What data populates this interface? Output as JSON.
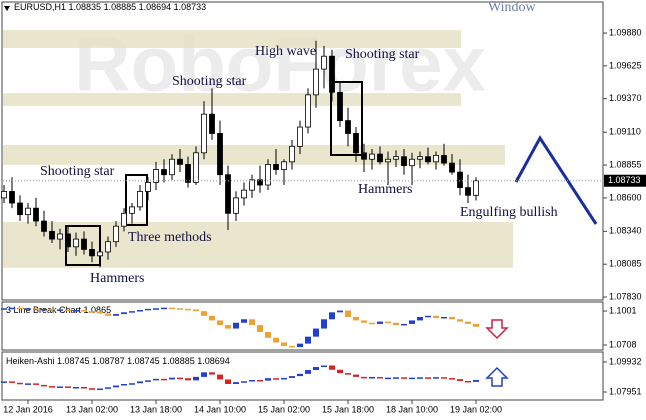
{
  "watermark": "RoboForex",
  "window_label": "Window",
  "chart_data": [
    {
      "type": "candlestick",
      "title": "EURUSD,H1",
      "header_values": [
        1.08835,
        1.08885,
        1.08694,
        1.08733
      ],
      "categories": [
        null,
        null,
        null,
        "12 Jan 2016",
        null,
        null,
        null,
        null,
        null,
        null,
        null,
        "13 Jan 02:00",
        null,
        null,
        null,
        null,
        null,
        null,
        null,
        "13 Jan 18:00",
        null,
        null,
        null,
        null,
        null,
        null,
        null,
        "14 Jan 10:00",
        null,
        null,
        null,
        null,
        null,
        null,
        null,
        "15 Jan 02:00",
        null,
        null,
        null,
        null,
        null,
        null,
        null,
        "15 Jan 18:00",
        null,
        null,
        null,
        null,
        null,
        null,
        null,
        "18 Jan 10:00",
        null,
        null,
        null,
        null,
        null,
        null,
        null,
        "19 Jan 02:00"
      ],
      "open": [
        1.086,
        1.0865,
        1.0856,
        1.0847,
        1.0852,
        1.0842,
        1.0834,
        1.0828,
        1.0832,
        1.0822,
        1.0828,
        1.082,
        1.0815,
        1.0818,
        1.0826,
        1.0838,
        1.0848,
        1.0853,
        1.0865,
        1.0872,
        1.0882,
        1.0878,
        1.089,
        1.0886,
        1.0872,
        1.0895,
        1.0925,
        1.091,
        1.0878,
        1.0848,
        1.086,
        1.0866,
        1.0874,
        1.087,
        1.0886,
        1.0882,
        1.0888,
        1.09,
        1.0915,
        1.094,
        1.096,
        1.097,
        1.0942,
        1.092,
        1.091,
        1.0895,
        1.089,
        1.0894,
        1.0888,
        1.089,
        1.0892,
        1.0885,
        1.089,
        1.0892,
        1.0888,
        1.0893,
        1.0887,
        1.088,
        1.0868,
        1.0862
      ],
      "high": [
        1.087,
        1.0876,
        1.0862,
        1.0856,
        1.086,
        1.085,
        1.0842,
        1.0836,
        1.0838,
        1.0833,
        1.0834,
        1.0826,
        1.0824,
        1.083,
        1.0842,
        1.0852,
        1.0856,
        1.087,
        1.0876,
        1.0888,
        1.089,
        1.0894,
        1.0898,
        1.0892,
        1.09,
        1.0935,
        1.0945,
        1.092,
        1.0885,
        1.0865,
        1.0872,
        1.0878,
        1.0885,
        1.089,
        1.0898,
        1.089,
        1.0905,
        1.092,
        1.0945,
        1.0982,
        1.0978,
        1.0975,
        1.095,
        1.093,
        1.0915,
        1.0902,
        1.0898,
        1.09,
        1.0896,
        1.0897,
        1.0898,
        1.0895,
        1.0896,
        1.0899,
        1.0896,
        1.0902,
        1.0894,
        1.089,
        1.0878,
        1.0876
      ],
      "low": [
        1.0856,
        1.0852,
        1.0842,
        1.084,
        1.0838,
        1.083,
        1.0825,
        1.082,
        1.0818,
        1.0815,
        1.0816,
        1.081,
        1.0806,
        1.0812,
        1.0822,
        1.0834,
        1.084,
        1.085,
        1.0858,
        1.0866,
        1.0872,
        1.0874,
        1.088,
        1.0868,
        1.087,
        1.089,
        1.0905,
        1.087,
        1.0835,
        1.0842,
        1.0854,
        1.086,
        1.0864,
        1.0866,
        1.0878,
        1.087,
        1.0882,
        1.0894,
        1.091,
        1.093,
        1.0945,
        1.0935,
        1.0915,
        1.09,
        1.0888,
        1.088,
        1.0882,
        1.0886,
        1.087,
        1.0884,
        1.0878,
        1.087,
        1.0883,
        1.0886,
        1.0882,
        1.0885,
        1.0878,
        1.0862,
        1.0856,
        1.0858
      ],
      "close": [
        1.0865,
        1.0856,
        1.0847,
        1.0852,
        1.0842,
        1.0834,
        1.0828,
        1.0832,
        1.0822,
        1.0828,
        1.082,
        1.0815,
        1.0818,
        1.0826,
        1.0838,
        1.0848,
        1.0853,
        1.0865,
        1.0872,
        1.0882,
        1.0878,
        1.089,
        1.0886,
        1.0872,
        1.0895,
        1.0925,
        1.091,
        1.0878,
        1.0848,
        1.086,
        1.0866,
        1.0874,
        1.087,
        1.0886,
        1.0882,
        1.0888,
        1.09,
        1.0915,
        1.094,
        1.096,
        1.097,
        1.0942,
        1.092,
        1.091,
        1.0895,
        1.089,
        1.0894,
        1.0888,
        1.089,
        1.0892,
        1.0885,
        1.089,
        1.0892,
        1.0888,
        1.0893,
        1.0887,
        1.088,
        1.0868,
        1.0862,
        1.08733
      ],
      "up_color": "#ffffff",
      "down_color": "#000000",
      "ylim": [
        1.07807,
        1.10121
      ],
      "yticks": [
        {
          "value": 1.0988,
          "label": "1.09880"
        },
        1.09625,
        {
          "value": 1.0937,
          "label": "1.09370"
        },
        {
          "value": 1.0911,
          "label": "1.09110"
        },
        1.08855,
        {
          "value": 1.086,
          "label": "1.08600"
        },
        {
          "value": 1.0834,
          "label": "1.08340"
        },
        1.08085,
        {
          "value": 1.0783,
          "label": "1.07830"
        }
      ],
      "current_price": {
        "value": 1.08733,
        "label": "1.08733"
      },
      "zones": [
        [
          1.09764,
          1.09903
        ],
        [
          1.09314,
          1.09414
        ],
        [
          1.08856,
          1.09011
        ],
        [
          1.08057,
          1.08413
        ]
      ],
      "annotations": [
        "Shooting star",
        "Three methods",
        "Hammers",
        "Shooting star",
        "High wave",
        "Shooting star",
        "Hammers",
        "Engulfing bullish"
      ]
    },
    {
      "type": "line_break",
      "title": "3 Line Break Chart",
      "header_value": 1.0865,
      "values": [
        1.1025,
        1.103,
        1.102,
        1.1025,
        1.1015,
        1.102,
        1.101,
        1.1015,
        1.1005,
        1.101,
        1.1,
        1.0995,
        1.098,
        1.096,
        1.0975,
        1.099,
        1.1,
        1.101,
        1.102,
        1.1025,
        1.103,
        1.1025,
        1.102,
        1.1015,
        1.1,
        1.096,
        1.092,
        1.088,
        1.085,
        1.09,
        1.093,
        1.088,
        1.082,
        1.077,
        1.073,
        1.07,
        1.069,
        1.072,
        1.078,
        1.085,
        1.093,
        1.099,
        1.1005,
        1.095,
        1.092,
        1.09,
        1.089,
        1.091,
        1.09,
        1.088,
        1.089,
        1.092,
        1.095,
        1.096,
        1.094,
        1.095,
        1.093,
        1.091,
        1.089,
        1.0865
      ],
      "up_color": "#1f3fd6",
      "down_color": "#f0a030",
      "ylim": [
        1.0665,
        1.1079
      ],
      "yticks": [
        1.1001,
        1.0708
      ]
    },
    {
      "type": "heiken_ashi",
      "title": "Heiken-Ashi",
      "header_values": [
        1.08745,
        1.08787,
        1.08745,
        1.08885,
        1.08694
      ],
      "values": [
        1.0865,
        1.0856,
        1.0847,
        1.0852,
        1.0842,
        1.0834,
        1.0828,
        1.0832,
        1.0822,
        1.0828,
        1.082,
        1.0815,
        1.0818,
        1.0826,
        1.0838,
        1.0848,
        1.0853,
        1.0865,
        1.0872,
        1.0882,
        1.0878,
        1.089,
        1.0886,
        1.0872,
        1.0895,
        1.0925,
        1.091,
        1.0878,
        1.0848,
        1.086,
        1.0866,
        1.0874,
        1.087,
        1.0886,
        1.0882,
        1.0888,
        1.09,
        1.0915,
        1.094,
        1.096,
        1.097,
        1.0942,
        1.092,
        1.091,
        1.0895,
        1.089,
        1.0894,
        1.0888,
        1.089,
        1.0892,
        1.0885,
        1.089,
        1.0892,
        1.0888,
        1.0893,
        1.0887,
        1.088,
        1.0868,
        1.0862,
        1.08745
      ],
      "up_color": "#1f3fd6",
      "down_color": "#e02020",
      "ylim": [
        1.07423,
        1.10592
      ],
      "yticks": [
        1.09932,
        1.07951
      ]
    }
  ]
}
